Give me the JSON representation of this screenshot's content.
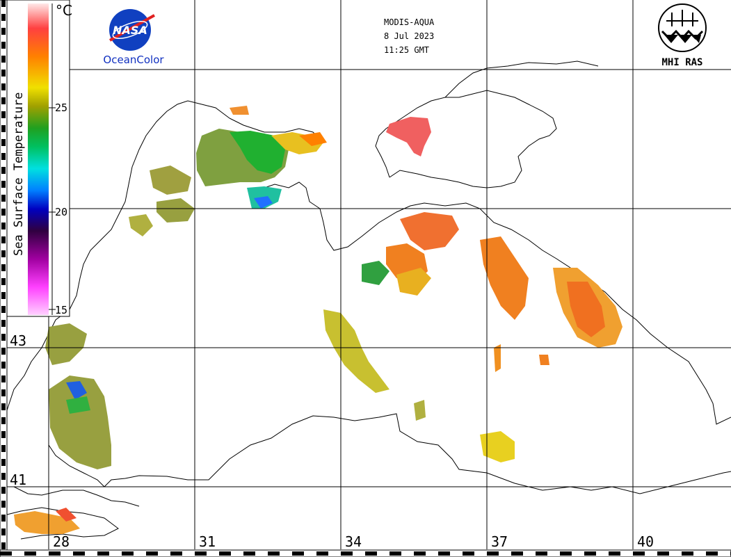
{
  "header": {
    "sensor": "MODIS-AQUA",
    "date": "8 Jul 2023",
    "time": "11:25 GMT"
  },
  "logos": {
    "nasa_text": "NASA",
    "oceancolor_text": "OceanColor",
    "mhi_text": "MHI RAS"
  },
  "colorbar": {
    "title": "Sea Surface Temperature",
    "unit": "°C",
    "ticks": [
      "25",
      "20",
      "15"
    ],
    "colors_top_to_bottom": [
      "#ffd0d0",
      "#ff4040",
      "#ff8000",
      "#f0e000",
      "#a0a000",
      "#20a020",
      "#00c060",
      "#00e0e0",
      "#0080ff",
      "#0000c0",
      "#400060",
      "#a000a0",
      "#ff40ff",
      "#ffc0ff"
    ]
  },
  "latitude_labels": [
    "43",
    "41"
  ],
  "longitude_labels": [
    "28",
    "31",
    "34",
    "37",
    "40"
  ],
  "palette": {
    "background": "#ffffff",
    "coast": "#000000",
    "grid": "#000000"
  }
}
